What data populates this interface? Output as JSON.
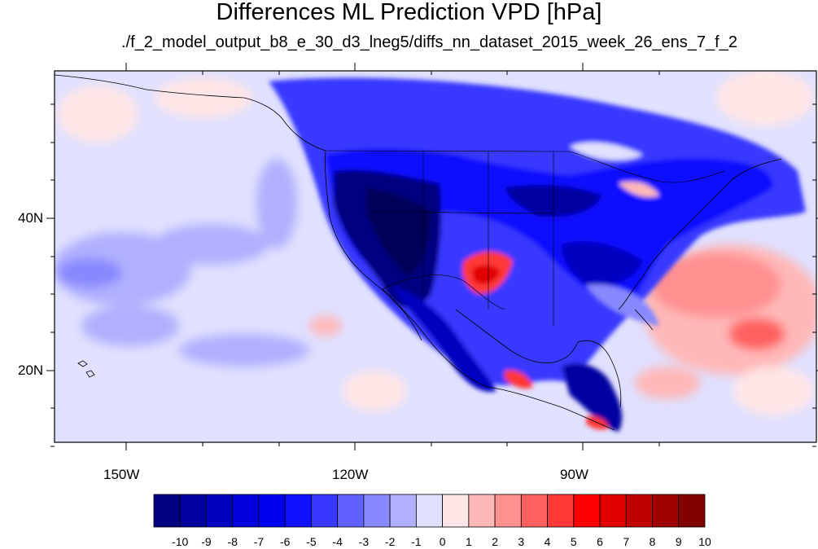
{
  "title": "Differences ML Prediction VPD [hPa]",
  "subtitle": "./f_2_model_output_b8_e_30_d3_lneg5/diffs_nn_dataset_2015_week_26_ens_7_f_2",
  "axes": {
    "lat_labels": [
      "40N",
      "20N"
    ],
    "lon_labels": [
      "150W",
      "120W",
      "90W"
    ]
  },
  "colorbar": {
    "labels": [
      "-10",
      "-9",
      "-8",
      "-7",
      "-6",
      "-5",
      "-4",
      "-3",
      "-2",
      "-1",
      "0",
      "1",
      "2",
      "3",
      "4",
      "5",
      "6",
      "7",
      "8",
      "9",
      "10"
    ],
    "colors": [
      "#000080",
      "#0000a0",
      "#0000c0",
      "#0000dd",
      "#0000f0",
      "#1010ff",
      "#3838ff",
      "#6060ff",
      "#8888ff",
      "#b0b0ff",
      "#e0e0ff",
      "#ffe6e6",
      "#ffb8b8",
      "#ff9090",
      "#ff6060",
      "#ff3838",
      "#ff0000",
      "#e00000",
      "#c00000",
      "#a00000",
      "#800000"
    ]
  }
}
